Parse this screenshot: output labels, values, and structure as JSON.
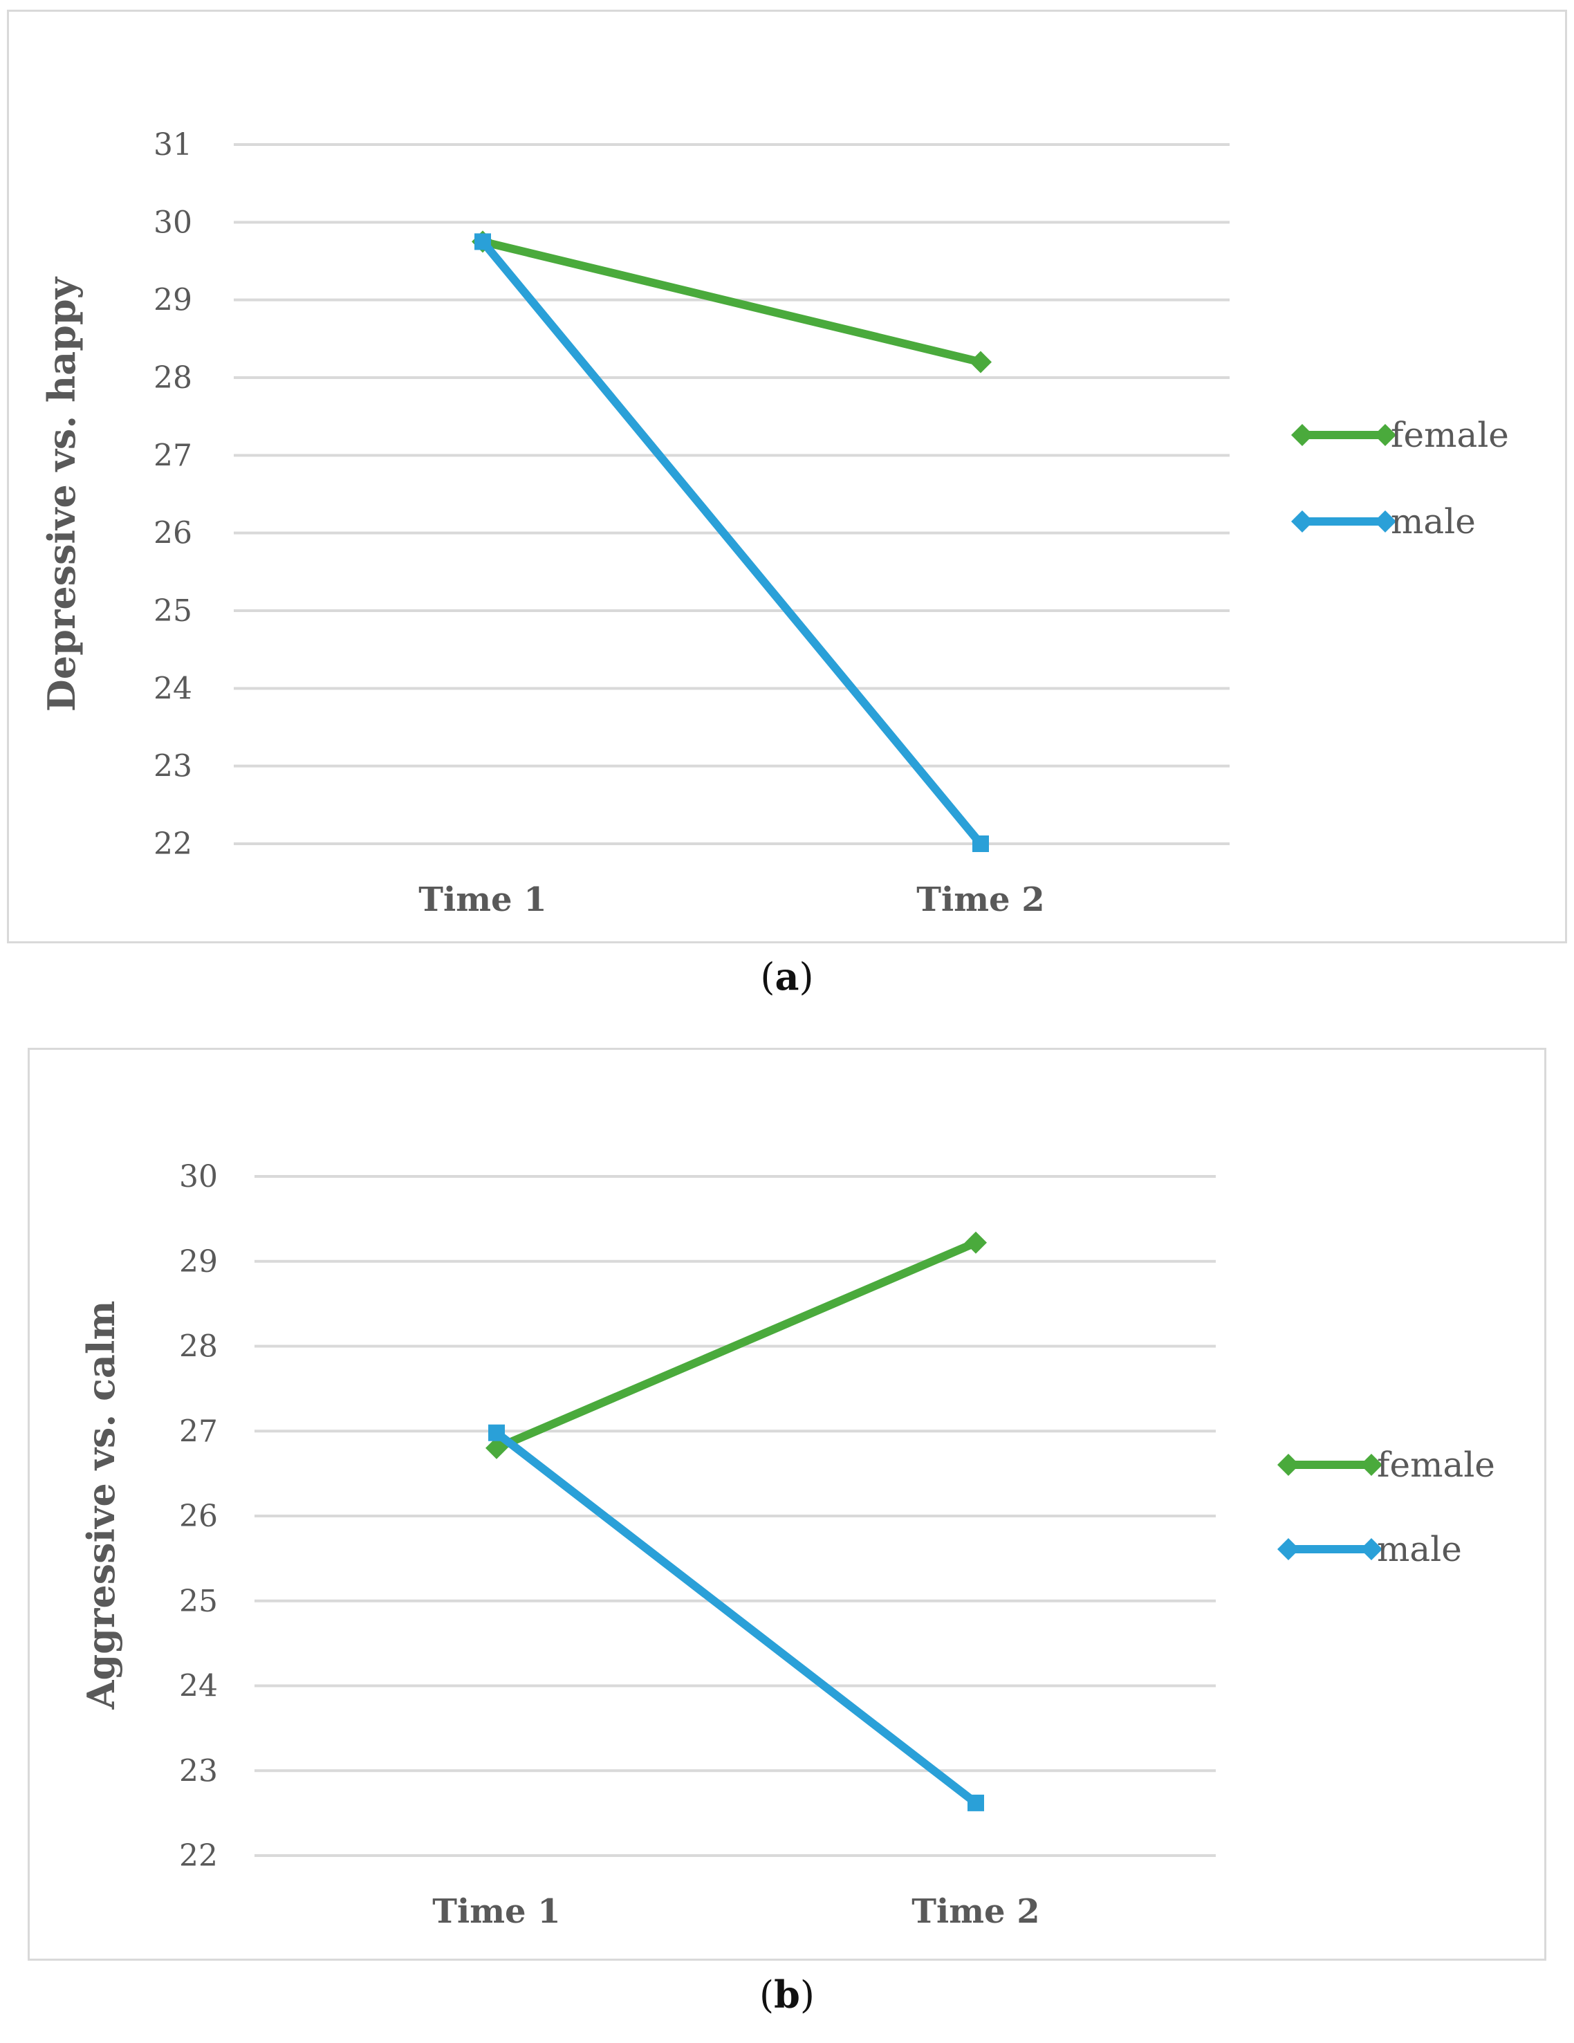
{
  "chart_data": [
    {
      "type": "line",
      "panel_label": "a",
      "categories": [
        "Time 1",
        "Time 2"
      ],
      "series": [
        {
          "name": "female",
          "color": "#4aaa3c",
          "marker": "diamond",
          "values": [
            29.75,
            28.2
          ]
        },
        {
          "name": "male",
          "color": "#2aa0d8",
          "marker": "square",
          "values": [
            29.75,
            22.0
          ]
        }
      ],
      "title": "",
      "xlabel": "",
      "ylabel": "Depressive vs. happy",
      "ylim": [
        22,
        31
      ],
      "yticks": [
        22,
        23,
        24,
        25,
        26,
        27,
        28,
        29,
        30,
        31
      ],
      "grid": true,
      "legend": "right"
    },
    {
      "type": "line",
      "panel_label": "b",
      "categories": [
        "Time 1",
        "Time 2"
      ],
      "series": [
        {
          "name": "female",
          "color": "#4aaa3c",
          "marker": "diamond",
          "values": [
            26.8,
            29.22
          ]
        },
        {
          "name": "male",
          "color": "#2aa0d8",
          "marker": "square",
          "values": [
            26.98,
            22.62
          ]
        }
      ],
      "title": "",
      "xlabel": "",
      "ylabel": "Aggressive vs. calm",
      "ylim": [
        22,
        30
      ],
      "yticks": [
        22,
        23,
        24,
        25,
        26,
        27,
        28,
        29,
        30
      ],
      "grid": true,
      "legend": "right"
    }
  ],
  "captions": [
    {
      "open": "(",
      "label": "a",
      "close": ")"
    },
    {
      "open": "(",
      "label": "b",
      "close": ")"
    }
  ]
}
